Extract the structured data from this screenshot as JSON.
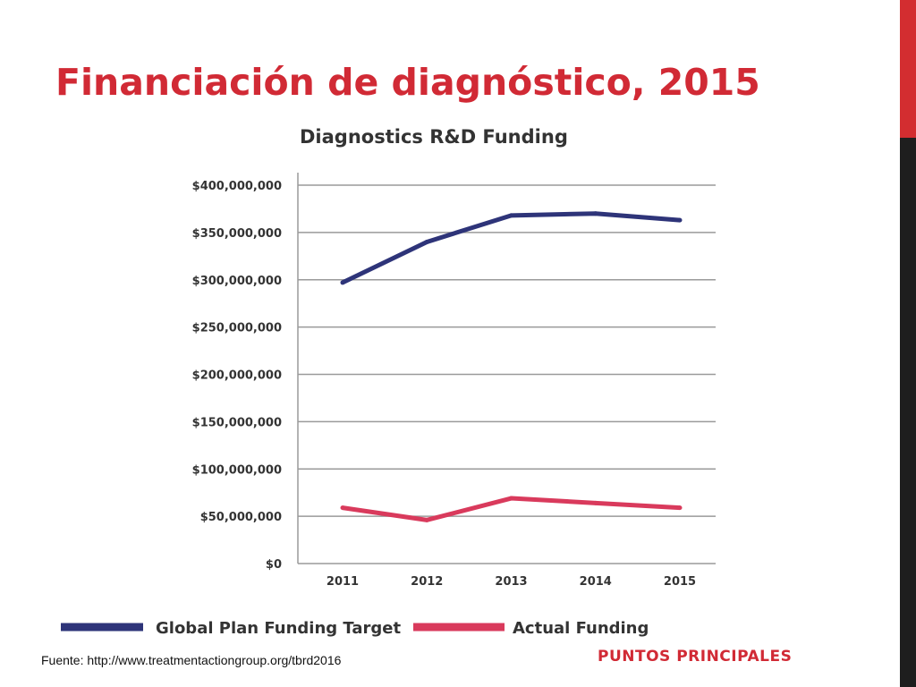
{
  "slide": {
    "title": "Financiación de diagnóstico, 2015",
    "source": "Fuente: http://www.treatmentactiongroup.org/tbrd2016",
    "section_label": "PUNTOS PRINCIPALES",
    "colors": {
      "accent": "#d12a35",
      "bar_top": "#d32d30",
      "bar_bottom": "#1e1e1e"
    }
  },
  "chart_data": {
    "type": "line",
    "title": "Diagnostics R&D Funding",
    "x": [
      "2011",
      "2012",
      "2013",
      "2014",
      "2015"
    ],
    "ylim": [
      0,
      400000000
    ],
    "yticks": [
      0,
      50000000,
      100000000,
      150000000,
      200000000,
      250000000,
      300000000,
      350000000,
      400000000
    ],
    "ytick_labels": [
      "$0",
      "$50,000,000",
      "$100,000,000",
      "$150,000,000",
      "$200,000,000",
      "$250,000,000",
      "$300,000,000",
      "$350,000,000",
      "$400,000,000"
    ],
    "grid": true,
    "legend_position": "bottom",
    "series": [
      {
        "name": "Global Plan Funding Target",
        "color": "#2e3479",
        "values": [
          297000000,
          340000000,
          368000000,
          370000000,
          363000000
        ]
      },
      {
        "name": "Actual Funding",
        "color": "#d93a5c",
        "values": [
          59000000,
          46000000,
          69000000,
          64000000,
          59000000
        ]
      }
    ]
  }
}
